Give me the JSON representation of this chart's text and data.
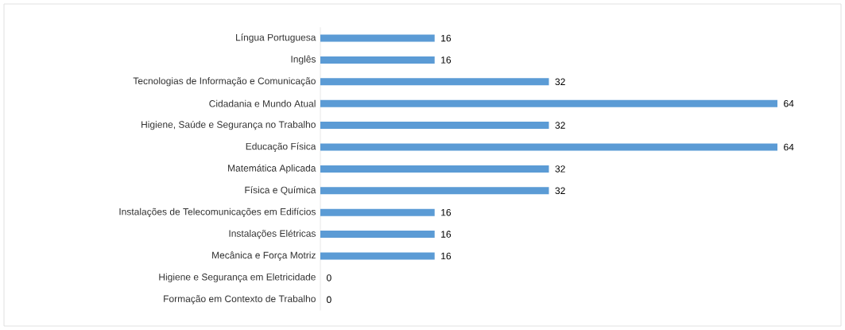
{
  "chart_data": {
    "type": "bar",
    "orientation": "horizontal",
    "categories": [
      "Língua Portuguesa",
      "Inglês",
      "Tecnologias de Informação e Comunicação",
      "Cidadania e Mundo Atual",
      "Higiene, Saúde e Segurança no Trabalho",
      "Educação Física",
      "Matemática Aplicada",
      "Física e Química",
      "Instalações de Telecomunicações em Edifícios",
      "Instalações Elétricas",
      "Mecânica e Força Motriz",
      "Higiene e Segurança em Eletricidade",
      "Formação em Contexto de Trabalho"
    ],
    "values": [
      16,
      16,
      32,
      64,
      32,
      64,
      32,
      32,
      16,
      16,
      16,
      0,
      0
    ],
    "color": "#5b9bd5",
    "data_labels": true
  }
}
